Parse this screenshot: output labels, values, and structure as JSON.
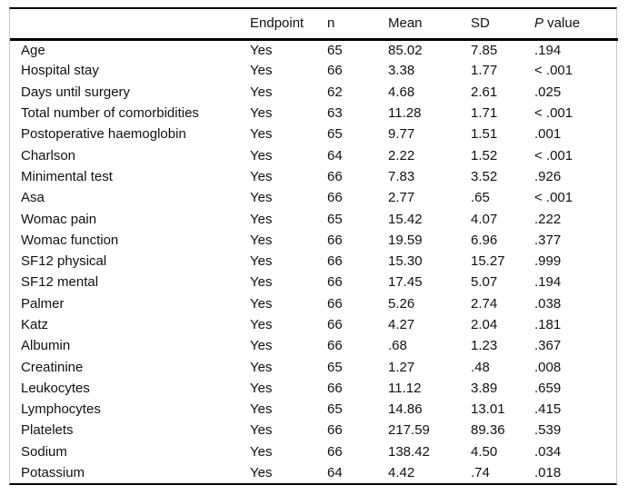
{
  "table": {
    "headers": {
      "variable": "",
      "endpoint": "Endpoint",
      "n": "n",
      "mean": "Mean",
      "sd": "SD",
      "p_italic": "P",
      "p_rest": " value"
    },
    "rows": [
      {
        "label": "Age",
        "endpoint": "Yes",
        "n": "65",
        "mean": "85.02",
        "sd": "7.85",
        "p": ".194"
      },
      {
        "label": "Hospital stay",
        "endpoint": "Yes",
        "n": "66",
        "mean": "3.38",
        "sd": "1.77",
        "p": "< .001"
      },
      {
        "label": "Days until surgery",
        "endpoint": "Yes",
        "n": "62",
        "mean": "4.68",
        "sd": "2.61",
        "p": ".025"
      },
      {
        "label": "Total number of comorbidities",
        "endpoint": "Yes",
        "n": "63",
        "mean": "11.28",
        "sd": "1.71",
        "p": "< .001"
      },
      {
        "label": "Postoperative haemoglobin",
        "endpoint": "Yes",
        "n": "65",
        "mean": "9.77",
        "sd": "1.51",
        "p": ".001"
      },
      {
        "label": "Charlson",
        "endpoint": "Yes",
        "n": "64",
        "mean": "2.22",
        "sd": "1.52",
        "p": "< .001"
      },
      {
        "label": "Minimental test",
        "endpoint": "Yes",
        "n": "66",
        "mean": "7.83",
        "sd": "3.52",
        "p": ".926"
      },
      {
        "label": "Asa",
        "endpoint": "Yes",
        "n": "66",
        "mean": "2.77",
        "sd": ".65",
        "p": "< .001"
      },
      {
        "label": "Womac pain",
        "endpoint": "Yes",
        "n": "65",
        "mean": "15.42",
        "sd": "4.07",
        "p": ".222"
      },
      {
        "label": "Womac function",
        "endpoint": "Yes",
        "n": "66",
        "mean": "19.59",
        "sd": "6.96",
        "p": ".377"
      },
      {
        "label": "SF12 physical",
        "endpoint": "Yes",
        "n": "66",
        "mean": "15.30",
        "sd": "15.27",
        "p": ".999"
      },
      {
        "label": "SF12 mental",
        "endpoint": "Yes",
        "n": "66",
        "mean": "17.45",
        "sd": "5.07",
        "p": ".194"
      },
      {
        "label": "Palmer",
        "endpoint": "Yes",
        "n": "66",
        "mean": "5.26",
        "sd": "2.74",
        "p": ".038"
      },
      {
        "label": "Katz",
        "endpoint": "Yes",
        "n": "66",
        "mean": "4.27",
        "sd": "2.04",
        "p": ".181"
      },
      {
        "label": "Albumin",
        "endpoint": "Yes",
        "n": "66",
        "mean": ".68",
        "sd": "1.23",
        "p": ".367"
      },
      {
        "label": "Creatinine",
        "endpoint": "Yes",
        "n": "65",
        "mean": "1.27",
        "sd": ".48",
        "p": ".008"
      },
      {
        "label": "Leukocytes",
        "endpoint": "Yes",
        "n": "66",
        "mean": "11.12",
        "sd": "3.89",
        "p": ".659"
      },
      {
        "label": "Lymphocytes",
        "endpoint": "Yes",
        "n": "65",
        "mean": "14.86",
        "sd": "13.01",
        "p": ".415"
      },
      {
        "label": "Platelets",
        "endpoint": "Yes",
        "n": "66",
        "mean": "217.59",
        "sd": "89.36",
        "p": ".539"
      },
      {
        "label": "Sodium",
        "endpoint": "Yes",
        "n": "66",
        "mean": "138.42",
        "sd": "4.50",
        "p": ".034"
      },
      {
        "label": "Potassium",
        "endpoint": "Yes",
        "n": "64",
        "mean": "4.42",
        "sd": ".74",
        "p": ".018"
      }
    ]
  }
}
